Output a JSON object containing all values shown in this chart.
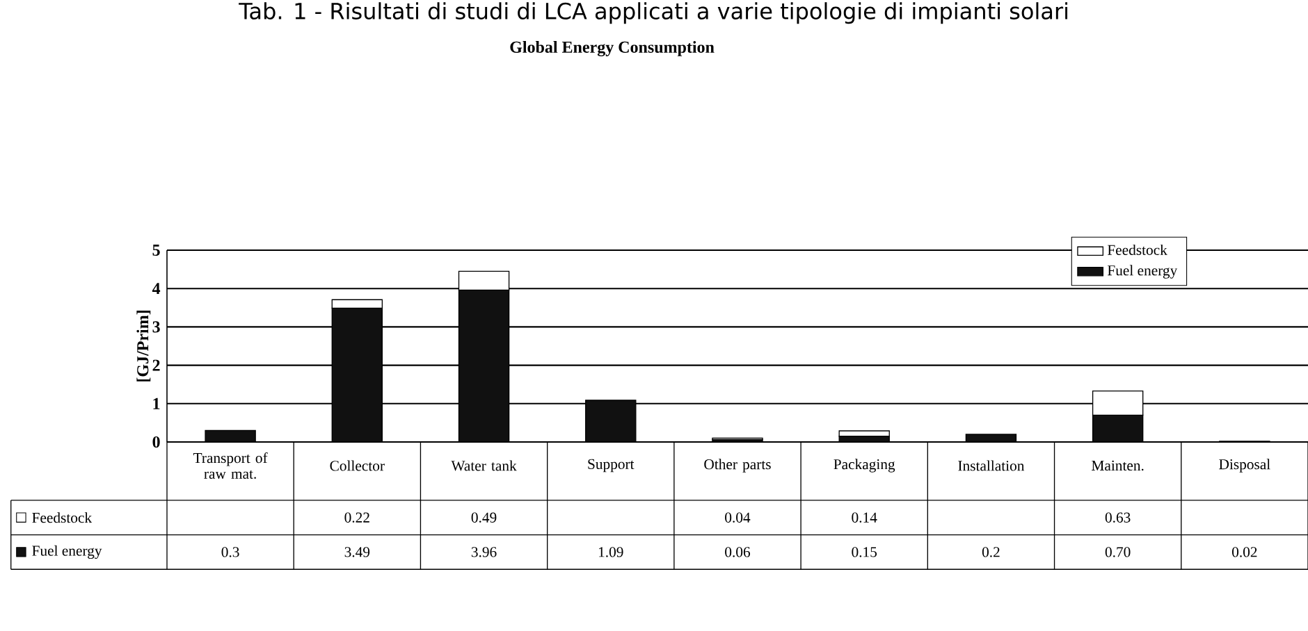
{
  "chart_data": {
    "type": "bar",
    "stacked": true,
    "title": "Tab. 1 - Risultati di studi di LCA applicati a varie tipologie di impianti solari",
    "subtitle": "Global Energy Consumption",
    "ylabel": "[GJ/Prim]",
    "categories": [
      "Transport of raw mat.",
      "Collector",
      "Water tank",
      "Support",
      "Other parts",
      "Packaging",
      "Installation",
      "Mainten.",
      "Disposal"
    ],
    "series": [
      {
        "name": "Fuel energy",
        "color": "#111111",
        "values": [
          0.3,
          3.49,
          3.96,
          1.09,
          0.06,
          0.15,
          0.2,
          0.7,
          0.02
        ],
        "value_labels": [
          "0.3",
          "3.49",
          "3.96",
          "1.09",
          "0.06",
          "0.15",
          "0.2",
          "0.70",
          "0.02"
        ]
      },
      {
        "name": "Feedstock",
        "color": "#ffffff",
        "values": [
          null,
          0.22,
          0.49,
          null,
          0.04,
          0.14,
          null,
          0.63,
          null
        ],
        "value_labels": [
          null,
          "0.22",
          "0.49",
          null,
          "0.04",
          "0.14",
          null,
          "0.63",
          null
        ]
      }
    ],
    "ylim": [
      0,
      5
    ],
    "yticks": [
      0,
      1,
      2,
      3,
      4,
      5
    ],
    "grid": "y",
    "legend": "top right"
  }
}
